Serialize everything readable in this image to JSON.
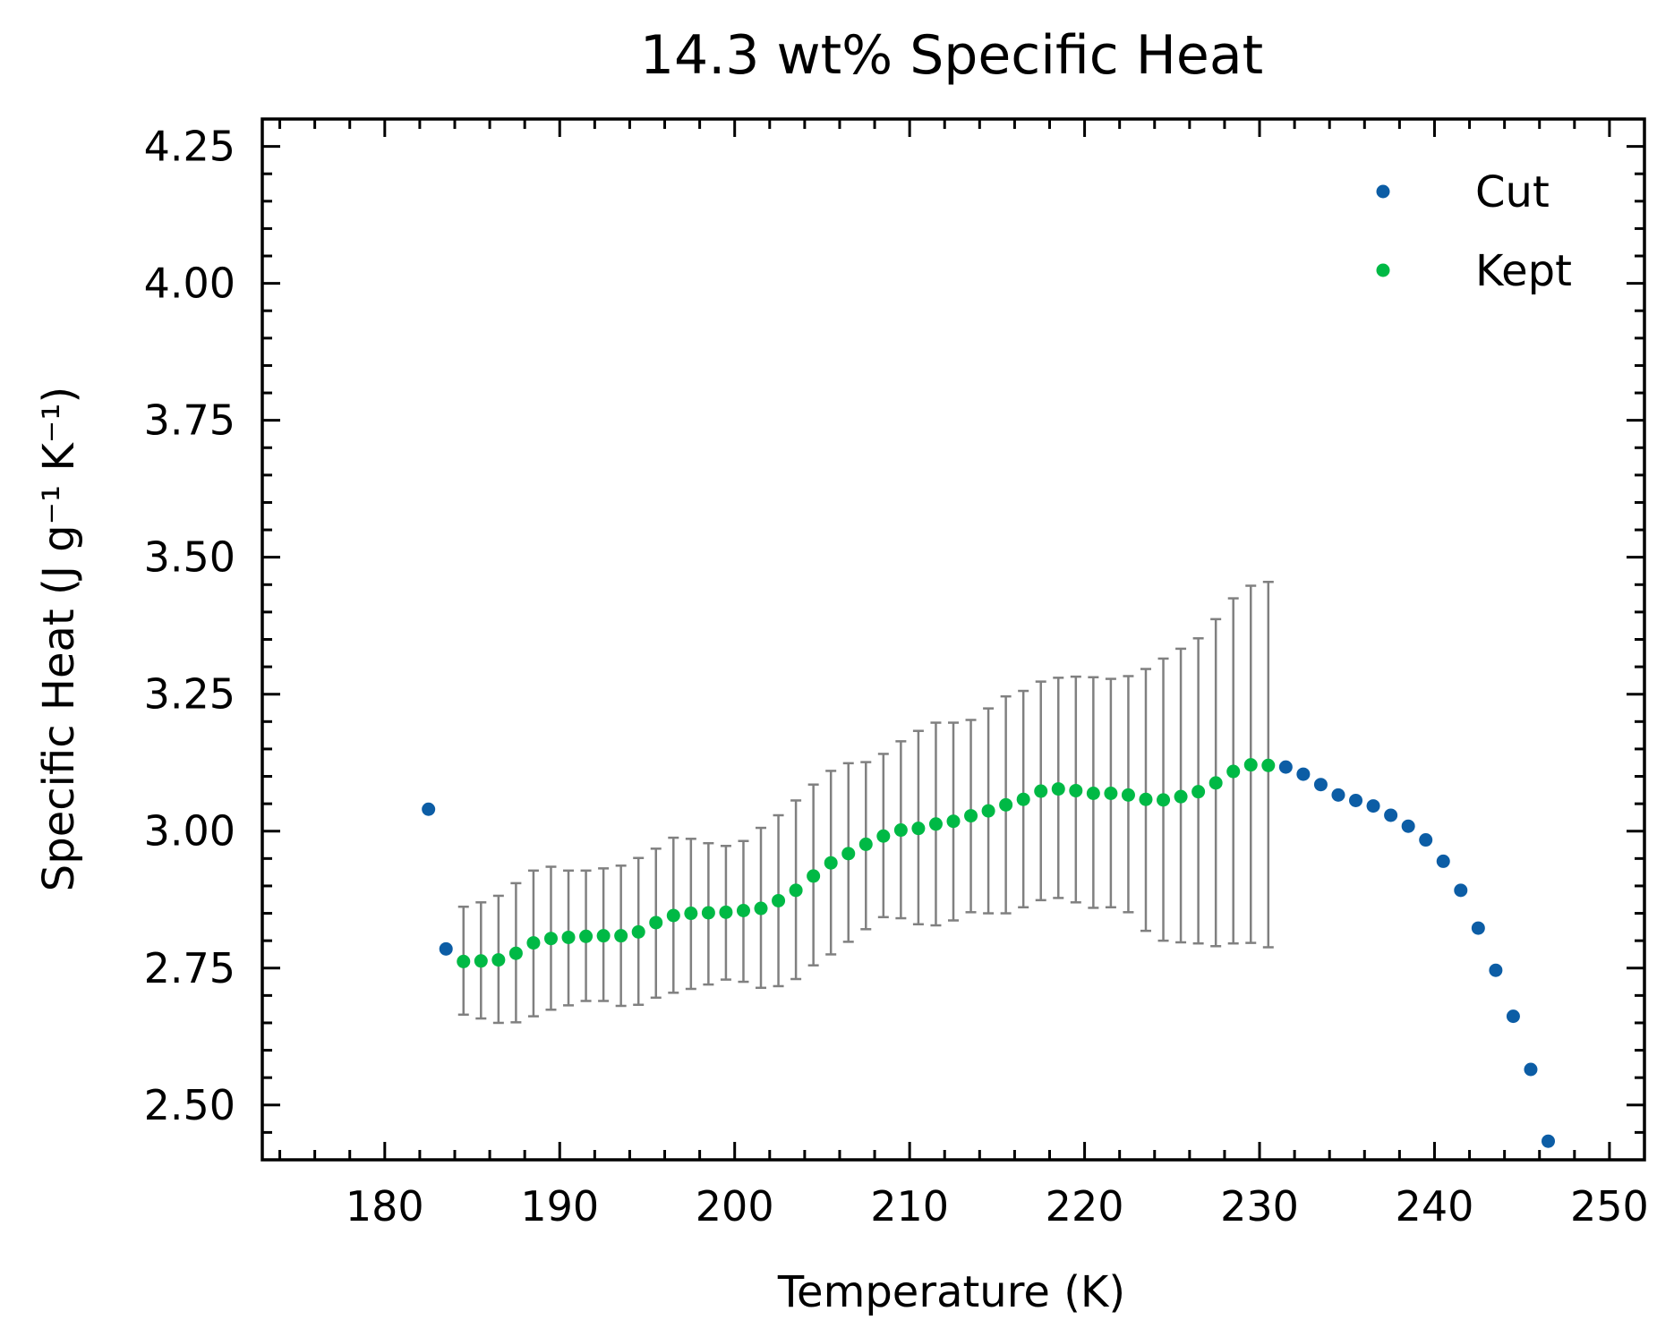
{
  "chart_data": {
    "type": "scatter",
    "title": "14.3 wt% Specific Heat",
    "xlabel": "Temperature (K)",
    "ylabel": "Specific Heat (J g⁻¹ K⁻¹)",
    "xlim": [
      173,
      252
    ],
    "ylim": [
      2.4,
      4.3
    ],
    "xticks": [
      180,
      190,
      200,
      210,
      220,
      230,
      240,
      250
    ],
    "xtick_labels": [
      "180",
      "190",
      "200",
      "210",
      "220",
      "230",
      "240",
      "250"
    ],
    "yticks": [
      2.5,
      2.75,
      3.0,
      3.25,
      3.5,
      3.75,
      4.0,
      4.25
    ],
    "ytick_labels": [
      "2.50",
      "2.75",
      "3.00",
      "3.25",
      "3.50",
      "3.75",
      "4.00",
      "4.25"
    ],
    "grid": false,
    "legend_position": "top-right",
    "series": [
      {
        "name": "Cut",
        "color": "#0c5da5",
        "x": [
          182.5,
          183.5,
          231.5,
          232.5,
          233.5,
          234.5,
          235.5,
          236.5,
          237.5,
          238.5,
          239.5,
          240.5,
          241.5,
          242.5,
          243.5,
          244.5,
          245.5,
          246.5
        ],
        "y": [
          3.04,
          2.785,
          3.117,
          3.104,
          3.085,
          3.066,
          3.056,
          3.046,
          3.029,
          3.009,
          2.984,
          2.945,
          2.892,
          2.823,
          2.746,
          2.662,
          2.565,
          2.434
        ]
      },
      {
        "name": "Kept",
        "color": "#00b945",
        "x": [
          184.5,
          185.5,
          186.5,
          187.5,
          188.5,
          189.5,
          190.5,
          191.5,
          192.5,
          193.5,
          194.5,
          195.5,
          196.5,
          197.5,
          198.5,
          199.5,
          200.5,
          201.5,
          202.5,
          203.5,
          204.5,
          205.5,
          206.5,
          207.5,
          208.5,
          209.5,
          210.5,
          211.5,
          212.5,
          213.5,
          214.5,
          215.5,
          216.5,
          217.5,
          218.5,
          219.5,
          220.5,
          221.5,
          222.5,
          223.5,
          224.5,
          225.5,
          226.5,
          227.5,
          228.5,
          229.5,
          230.5
        ],
        "y": [
          2.762,
          2.763,
          2.765,
          2.777,
          2.796,
          2.804,
          2.806,
          2.808,
          2.809,
          2.809,
          2.816,
          2.833,
          2.846,
          2.85,
          2.851,
          2.852,
          2.855,
          2.859,
          2.873,
          2.892,
          2.918,
          2.942,
          2.959,
          2.976,
          2.991,
          3.002,
          3.005,
          3.013,
          3.018,
          3.028,
          3.037,
          3.048,
          3.058,
          3.073,
          3.077,
          3.074,
          3.069,
          3.069,
          3.066,
          3.058,
          3.057,
          3.063,
          3.072,
          3.088,
          3.109,
          3.121,
          3.12
        ],
        "error_bars": {
          "color": "#808080",
          "lower": [
            2.665,
            2.658,
            2.65,
            2.651,
            2.662,
            2.674,
            2.682,
            2.69,
            2.69,
            2.681,
            2.683,
            2.696,
            2.705,
            2.712,
            2.72,
            2.729,
            2.725,
            2.714,
            2.717,
            2.73,
            2.755,
            2.775,
            2.798,
            2.821,
            2.843,
            2.841,
            2.83,
            2.828,
            2.837,
            2.852,
            2.85,
            2.85,
            2.861,
            2.874,
            2.878,
            2.87,
            2.86,
            2.861,
            2.852,
            2.818,
            2.8,
            2.797,
            2.795,
            2.79,
            2.795,
            2.796,
            2.788
          ],
          "upper": [
            2.862,
            2.87,
            2.882,
            2.905,
            2.928,
            2.935,
            2.928,
            2.928,
            2.932,
            2.937,
            2.951,
            2.968,
            2.988,
            2.986,
            2.978,
            2.973,
            2.982,
            3.006,
            3.029,
            3.056,
            3.085,
            3.11,
            3.124,
            3.126,
            3.141,
            3.164,
            3.183,
            3.198,
            3.198,
            3.203,
            3.224,
            3.246,
            3.256,
            3.273,
            3.28,
            3.282,
            3.281,
            3.278,
            3.283,
            3.296,
            3.315,
            3.333,
            3.352,
            3.387,
            3.425,
            3.448,
            3.455
          ]
        }
      }
    ]
  }
}
